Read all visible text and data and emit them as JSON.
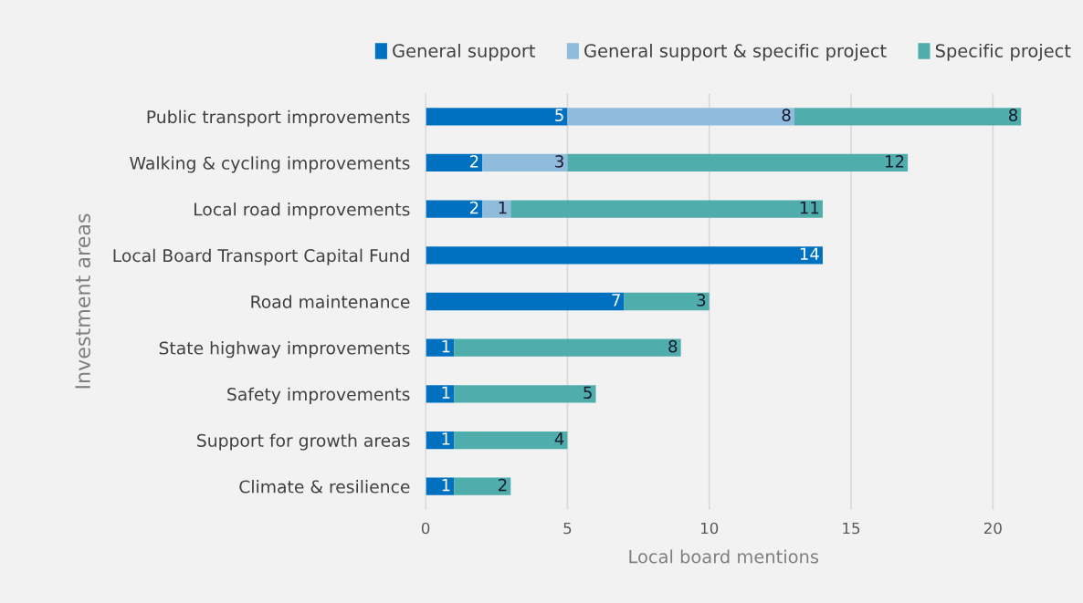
{
  "chart_data": {
    "type": "bar",
    "orientation": "horizontal",
    "stacked": true,
    "categories": [
      "Public transport improvements",
      "Walking & cycling improvements",
      "Local road improvements",
      "Local Board Transport Capital Fund",
      "Road maintenance",
      "State highway improvements",
      "Safety improvements",
      "Support for growth areas",
      "Climate & resilience"
    ],
    "series": [
      {
        "name": "General support",
        "color": "#0070c0",
        "values": [
          5,
          2,
          2,
          14,
          7,
          1,
          1,
          1,
          1
        ]
      },
      {
        "name": "General support & specific project",
        "color": "#8fbbdd",
        "values": [
          8,
          3,
          1,
          null,
          null,
          null,
          null,
          null,
          null
        ]
      },
      {
        "name": "Specific project",
        "color": "#4fadac",
        "values": [
          8,
          12,
          11,
          null,
          3,
          8,
          5,
          4,
          2
        ]
      }
    ],
    "xlim": [
      0,
      21
    ],
    "xticks": [
      0,
      5,
      10,
      15,
      20
    ],
    "xlabel": "Local board mentions",
    "ylabel": "Investment areas",
    "grid": "x",
    "legend": "top",
    "data_labels": true
  }
}
